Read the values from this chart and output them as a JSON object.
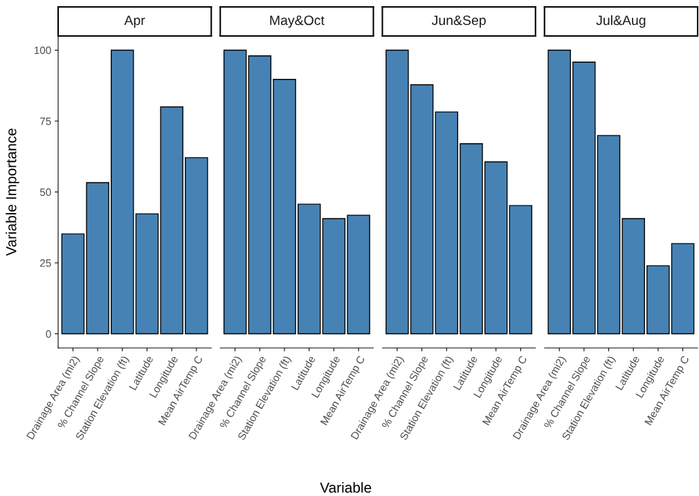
{
  "chart_data": [
    {
      "type": "bar",
      "title": "Apr",
      "ylabel": "Variable Importance",
      "categories": [
        "Drainage Area (mi2)",
        "% Channel Slope",
        "Station Elevation (ft)",
        "Latitude",
        "Longitude",
        "Mean AirTemp C"
      ],
      "values": [
        35.2,
        53.3,
        100,
        42.3,
        80,
        62.1
      ],
      "color": "#4682b4",
      "ylim": [
        -5,
        105
      ],
      "yticks": [
        0,
        25,
        50,
        75,
        100
      ],
      "grid": false
    },
    {
      "type": "bar",
      "title": "May&Oct",
      "xlabel": "Variable",
      "categories": [
        "Drainage Area (mi2)",
        "% Channel Slope",
        "Station Elevation (ft)",
        "Latitude",
        "Longitude",
        "Mean AirTemp C"
      ],
      "values": [
        100,
        98,
        89.7,
        45.7,
        40.6,
        41.8
      ],
      "color": "#4682b4",
      "ylim": [
        -5,
        105
      ],
      "tick_labels": "x",
      "grid": false
    },
    {
      "type": "bar",
      "title": "Jun&Sep",
      "categories": [
        "Drainage Area (mi2)",
        "% Channel Slope",
        "Station Elevation (ft)",
        "Latitude",
        "Longitude",
        "Mean AirTemp C"
      ],
      "values": [
        100,
        87.8,
        78.2,
        67,
        60.6,
        45.2
      ],
      "color": "#4682b4",
      "ylim": [
        -5,
        105
      ],
      "tick_labels": "x",
      "grid": false
    },
    {
      "type": "bar",
      "title": "Jul&Aug",
      "categories": [
        "Drainage Area (mi2)",
        "% Channel Slope",
        "Station Elevation (ft)",
        "Latitude",
        "Longitude",
        "Mean AirTemp C"
      ],
      "values": [
        100,
        95.8,
        69.9,
        40.6,
        24,
        31.8
      ],
      "color": "#4682b4",
      "ylim": [
        -5,
        105
      ],
      "tick_labels": "x",
      "grid": false
    }
  ]
}
